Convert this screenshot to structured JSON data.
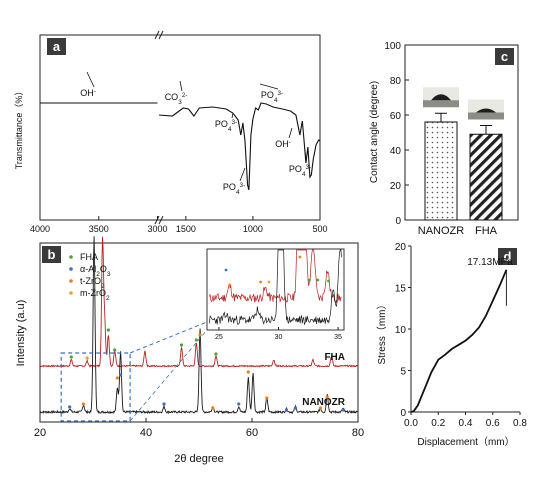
{
  "chart_data": [
    {
      "panel": "a",
      "type": "line",
      "ylabel": "Transmittance（%）",
      "x_ticks": [
        "4000",
        "3500",
        "3000",
        "1500",
        "1000",
        "500"
      ],
      "annotations": [
        {
          "label": "OH-",
          "x": 3600
        },
        {
          "label": "CO32-",
          "x": 1450
        },
        {
          "label": "PO43-",
          "x": 1090
        },
        {
          "label": "PO43-",
          "x": 1040
        },
        {
          "label": "PO43-",
          "x": 960
        },
        {
          "label": "OH-",
          "x": 632
        },
        {
          "label": "PO43-",
          "x": 570
        }
      ],
      "series": [
        {
          "values": [
            [
              4000,
              68
            ],
            [
              3800,
              68
            ],
            [
              3500,
              68
            ],
            [
              3200,
              68
            ],
            [
              3000,
              68
            ]
          ]
        },
        {
          "values": [
            [
              1700,
              80
            ],
            [
              1600,
              81
            ],
            [
              1520,
              73
            ],
            [
              1480,
              74
            ],
            [
              1440,
              81
            ],
            [
              1400,
              73
            ],
            [
              1300,
              72
            ],
            [
              1200,
              74
            ],
            [
              1150,
              78
            ],
            [
              1110,
              85
            ],
            [
              1090,
              100
            ],
            [
              1075,
              88
            ],
            [
              1060,
              105
            ],
            [
              1040,
              150
            ],
            [
              1030,
              155
            ],
            [
              1015,
              100
            ],
            [
              1000,
              84
            ],
            [
              980,
              73
            ],
            [
              960,
              75
            ],
            [
              940,
              68
            ],
            [
              900,
              69
            ],
            [
              850,
              72
            ],
            [
              780,
              74
            ],
            [
              720,
              76
            ],
            [
              680,
              80
            ],
            [
              650,
              100
            ],
            [
              632,
              86
            ],
            [
              620,
              104
            ],
            [
              605,
              128
            ],
            [
              590,
              112
            ],
            [
              575,
              142
            ],
            [
              565,
              140
            ],
            [
              550,
              124
            ],
            [
              530,
              110
            ],
            [
              510,
              105
            ],
            [
              500,
              106
            ]
          ]
        }
      ]
    },
    {
      "panel": "b",
      "type": "line",
      "xlabel": "2θ degree",
      "ylabel": "Intensity (a.u)",
      "xlim": [
        20,
        80
      ],
      "x_ticks": [
        "20",
        "40",
        "60",
        "80"
      ],
      "legend": [
        "FHA",
        "α-Al2O3",
        "t-ZrO2",
        "m-ZrO2"
      ],
      "legend_colors": [
        "#4ea72e",
        "#3f6fc4",
        "#f07f18",
        "#f0a020"
      ],
      "series": [
        {
          "name": "FHA",
          "color": "#b82222",
          "baseline": 0.67,
          "peaks": [
            [
              25.9,
              0.05
            ],
            [
              28.9,
              0.04
            ],
            [
              31.8,
              1.0
            ],
            [
              32.2,
              0.35
            ],
            [
              32.9,
              0.25
            ],
            [
              34.1,
              0.12
            ],
            [
              39.8,
              0.12
            ],
            [
              46.7,
              0.15
            ],
            [
              49.5,
              0.18
            ],
            [
              53.2,
              0.08
            ],
            [
              64.1,
              0.05
            ],
            [
              71.5,
              0.05
            ],
            [
              75.0,
              0.08
            ]
          ]
        },
        {
          "name": "NANOZR",
          "color": "#1a1a1a",
          "baseline": 0.92,
          "peaks": [
            [
              25.6,
              0.02
            ],
            [
              28.2,
              0.04
            ],
            [
              30.2,
              1.0
            ],
            [
              34.6,
              0.14
            ],
            [
              35.2,
              0.35
            ],
            [
              43.4,
              0.03
            ],
            [
              50.2,
              0.48
            ],
            [
              52.6,
              0.03
            ],
            [
              57.5,
              0.03
            ],
            [
              59.3,
              0.2
            ],
            [
              60.2,
              0.22
            ],
            [
              62.8,
              0.08
            ],
            [
              66.5,
              0.02
            ],
            [
              68.2,
              0.03
            ],
            [
              72.9,
              0.02
            ],
            [
              74.2,
              0.1
            ],
            [
              77.2,
              0.02
            ]
          ]
        }
      ],
      "inset": {
        "x_ticks": [
          "25",
          "30",
          "35"
        ]
      }
    },
    {
      "panel": "c",
      "type": "bar",
      "categories": [
        "NANOZR",
        "FHA"
      ],
      "values": [
        56,
        49
      ],
      "errors": [
        5,
        5
      ],
      "ylabel": "Contact angle (degree)",
      "ylim": [
        0,
        100
      ],
      "y_ticks": [
        "0",
        "20",
        "40",
        "60",
        "80",
        "100"
      ]
    },
    {
      "panel": "d",
      "type": "line",
      "xlabel": "Displacement（mm）",
      "ylabel": "Stress（mm）",
      "xlim": [
        0,
        0.8
      ],
      "ylim": [
        0,
        20
      ],
      "x_ticks": [
        "0.0",
        "0.2",
        "0.4",
        "0.6",
        "0.8"
      ],
      "y_ticks": [
        "0",
        "5",
        "10",
        "15",
        "20"
      ],
      "annotation": "17.13MPa",
      "series": [
        {
          "values": [
            [
              0.0,
              0.0
            ],
            [
              0.02,
              0.1
            ],
            [
              0.05,
              0.8
            ],
            [
              0.1,
              2.8
            ],
            [
              0.15,
              4.8
            ],
            [
              0.2,
              6.3
            ],
            [
              0.25,
              6.9
            ],
            [
              0.3,
              7.6
            ],
            [
              0.35,
              8.1
            ],
            [
              0.4,
              8.6
            ],
            [
              0.45,
              9.3
            ],
            [
              0.5,
              10.2
            ],
            [
              0.55,
              11.6
            ],
            [
              0.6,
              13.4
            ],
            [
              0.65,
              15.2
            ],
            [
              0.7,
              17.13
            ]
          ]
        }
      ]
    }
  ]
}
